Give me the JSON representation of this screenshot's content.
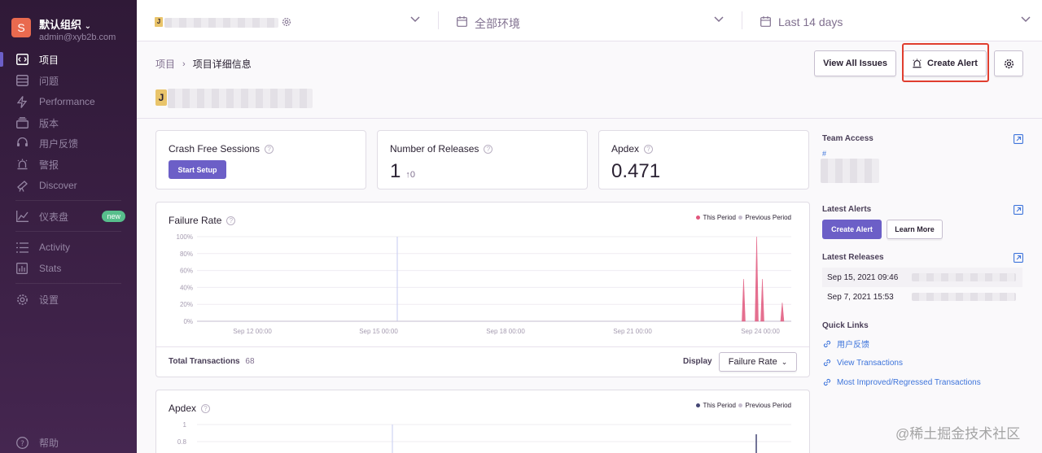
{
  "sidebar": {
    "org_initial": "S",
    "org_name": "默认组织",
    "org_email": "admin@xyb2b.com",
    "items": [
      {
        "label": "项目",
        "icon": "code-icon"
      },
      {
        "label": "问题",
        "icon": "issues-icon"
      },
      {
        "label": "Performance",
        "icon": "lightning-icon"
      },
      {
        "label": "版本",
        "icon": "releases-icon"
      },
      {
        "label": "用户反馈",
        "icon": "support-icon"
      },
      {
        "label": "警报",
        "icon": "siren-icon"
      },
      {
        "label": "Discover",
        "icon": "telescope-icon"
      },
      {
        "label": "仪表盘",
        "icon": "graph-icon",
        "badge": "new"
      },
      {
        "label": "Activity",
        "icon": "list-icon"
      },
      {
        "label": "Stats",
        "icon": "stats-icon"
      },
      {
        "label": "设置",
        "icon": "gear-icon"
      },
      {
        "label": "帮助",
        "icon": "help-icon"
      }
    ]
  },
  "header": {
    "project_initial": "J",
    "environment": "全部环境",
    "time_range": "Last 14 days"
  },
  "breadcrumb": {
    "root": "项目",
    "current": "项目详细信息"
  },
  "actions": {
    "view_issues": "View All Issues",
    "create_alert": "Create Alert"
  },
  "project": {
    "initial": "J"
  },
  "cards": {
    "crash_free": {
      "title": "Crash Free Sessions",
      "button": "Start Setup"
    },
    "releases": {
      "title": "Number of Releases",
      "value": "1",
      "delta": "↑0"
    },
    "apdex": {
      "title": "Apdex",
      "value": "0.471"
    }
  },
  "failure_chart": {
    "title": "Failure Rate",
    "legend_this": "This Period",
    "legend_prev": "Previous Period",
    "footer_label": "Total Transactions",
    "footer_value": "68",
    "display_label": "Display",
    "display_value": "Failure Rate"
  },
  "apdex_chart": {
    "title": "Apdex",
    "legend_this": "This Period",
    "legend_prev": "Previous Period"
  },
  "chart_data": [
    {
      "type": "area",
      "title": "Failure Rate",
      "y_ticks": [
        "100%",
        "80%",
        "60%",
        "40%",
        "20%",
        "0%"
      ],
      "x_ticks": [
        "Sep 12 00:00",
        "Sep 15 00:00",
        "Sep 18 00:00",
        "Sep 21 00:00",
        "Sep 24 00:00"
      ],
      "ylim": [
        0,
        100
      ],
      "series": [
        {
          "name": "This Period",
          "color": "#e1567c",
          "spikes": [
            {
              "x": 0.962,
              "value": 50
            },
            {
              "x": 0.985,
              "value": 100
            },
            {
              "x": 0.995,
              "value": 50
            },
            {
              "x": 1.03,
              "value": 22
            }
          ]
        },
        {
          "name": "Previous Period",
          "color": "#c6becf"
        }
      ],
      "legend": "top-right"
    },
    {
      "type": "line",
      "title": "Apdex",
      "y_ticks": [
        "1",
        "0.8"
      ],
      "series": [
        {
          "name": "This Period",
          "color": "#444674"
        },
        {
          "name": "Previous Period",
          "color": "#c6becf"
        }
      ],
      "legend": "top-right"
    }
  ],
  "right": {
    "team_access": "Team Access",
    "team_hash": "#",
    "latest_alerts": "Latest Alerts",
    "create_alert": "Create Alert",
    "learn_more": "Learn More",
    "latest_releases": "Latest Releases",
    "releases": [
      "Sep 15, 2021 09:46",
      "Sep 7, 2021 15:53"
    ],
    "quick_links": "Quick Links",
    "links": [
      "用户反馈",
      "View Transactions",
      "Most Improved/Regressed Transactions"
    ]
  },
  "watermark": "@稀土掘金技术社区"
}
